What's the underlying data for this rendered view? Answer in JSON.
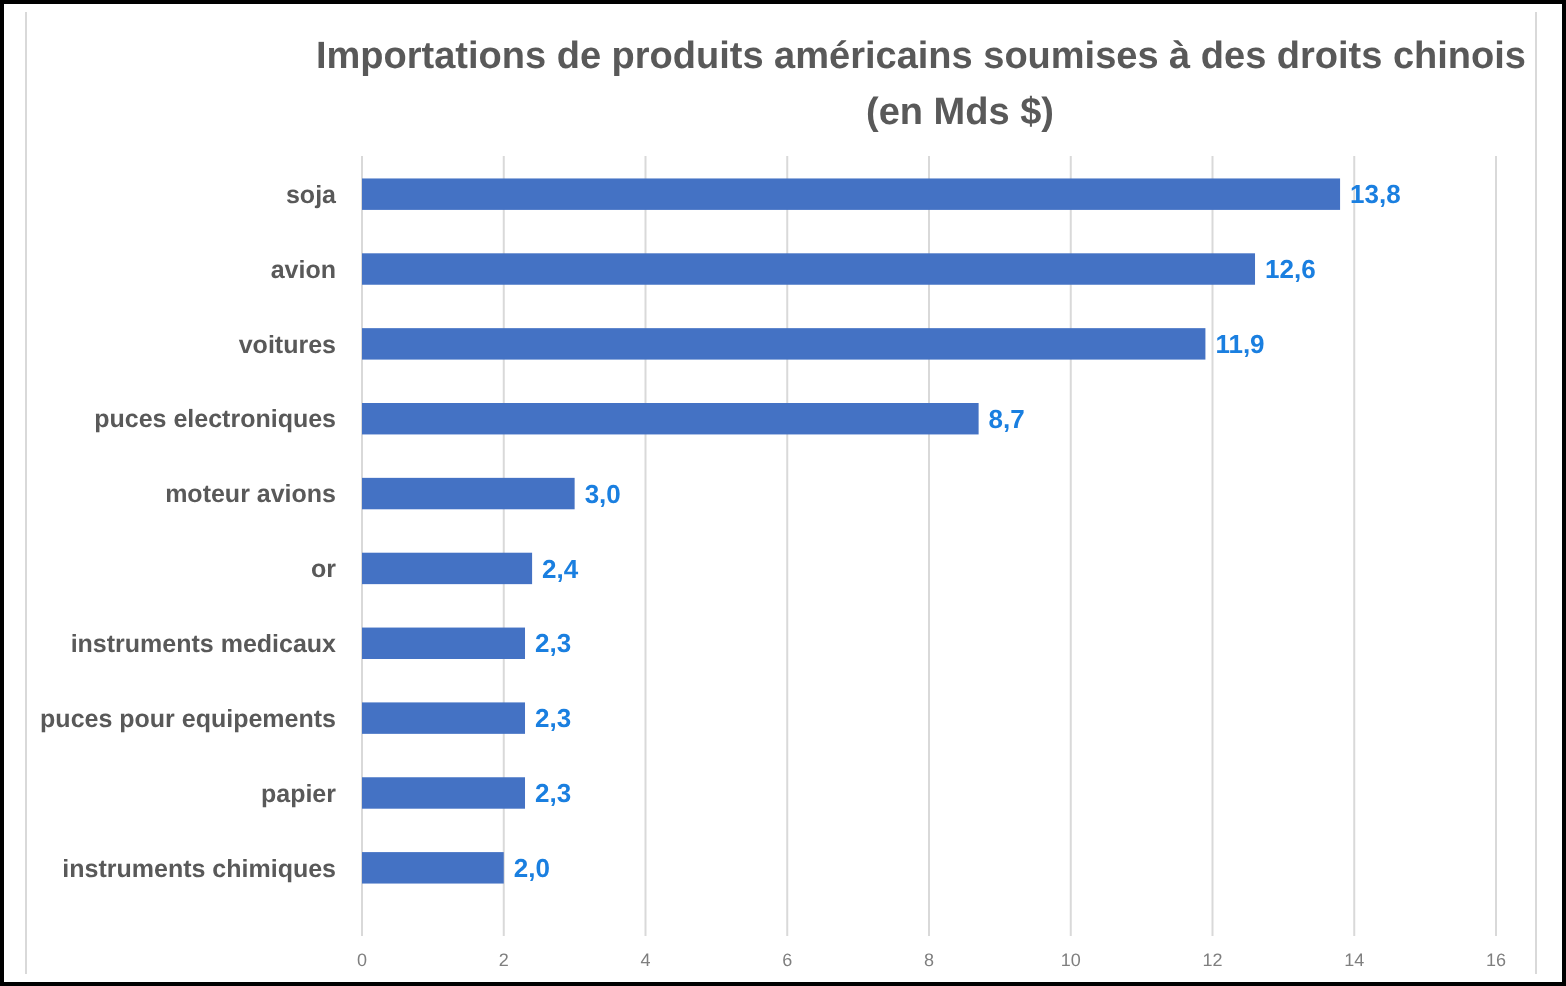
{
  "chart_data": {
    "type": "bar",
    "orientation": "horizontal",
    "title": "Importations de produits américains soumises à des droits chinois (en Mds $)",
    "categories": [
      "soja",
      "avion",
      "voitures",
      "puces electroniques",
      "moteur avions",
      "or",
      "instruments medicaux",
      "puces pour equipements",
      "papier",
      "instruments chimiques"
    ],
    "values": [
      13.8,
      12.6,
      11.9,
      8.7,
      3.0,
      2.4,
      2.3,
      2.3,
      2.3,
      2.0
    ],
    "value_labels": [
      "13,8",
      "12,6",
      "11,9",
      "8,7",
      "3,0",
      "2,4",
      "2,3",
      "2,3",
      "2,3",
      "2,0"
    ],
    "color": "#4472c4",
    "xlim": [
      0,
      16
    ],
    "xticks": [
      0,
      2,
      4,
      6,
      8,
      10,
      12,
      14,
      16
    ],
    "grid": "x"
  }
}
